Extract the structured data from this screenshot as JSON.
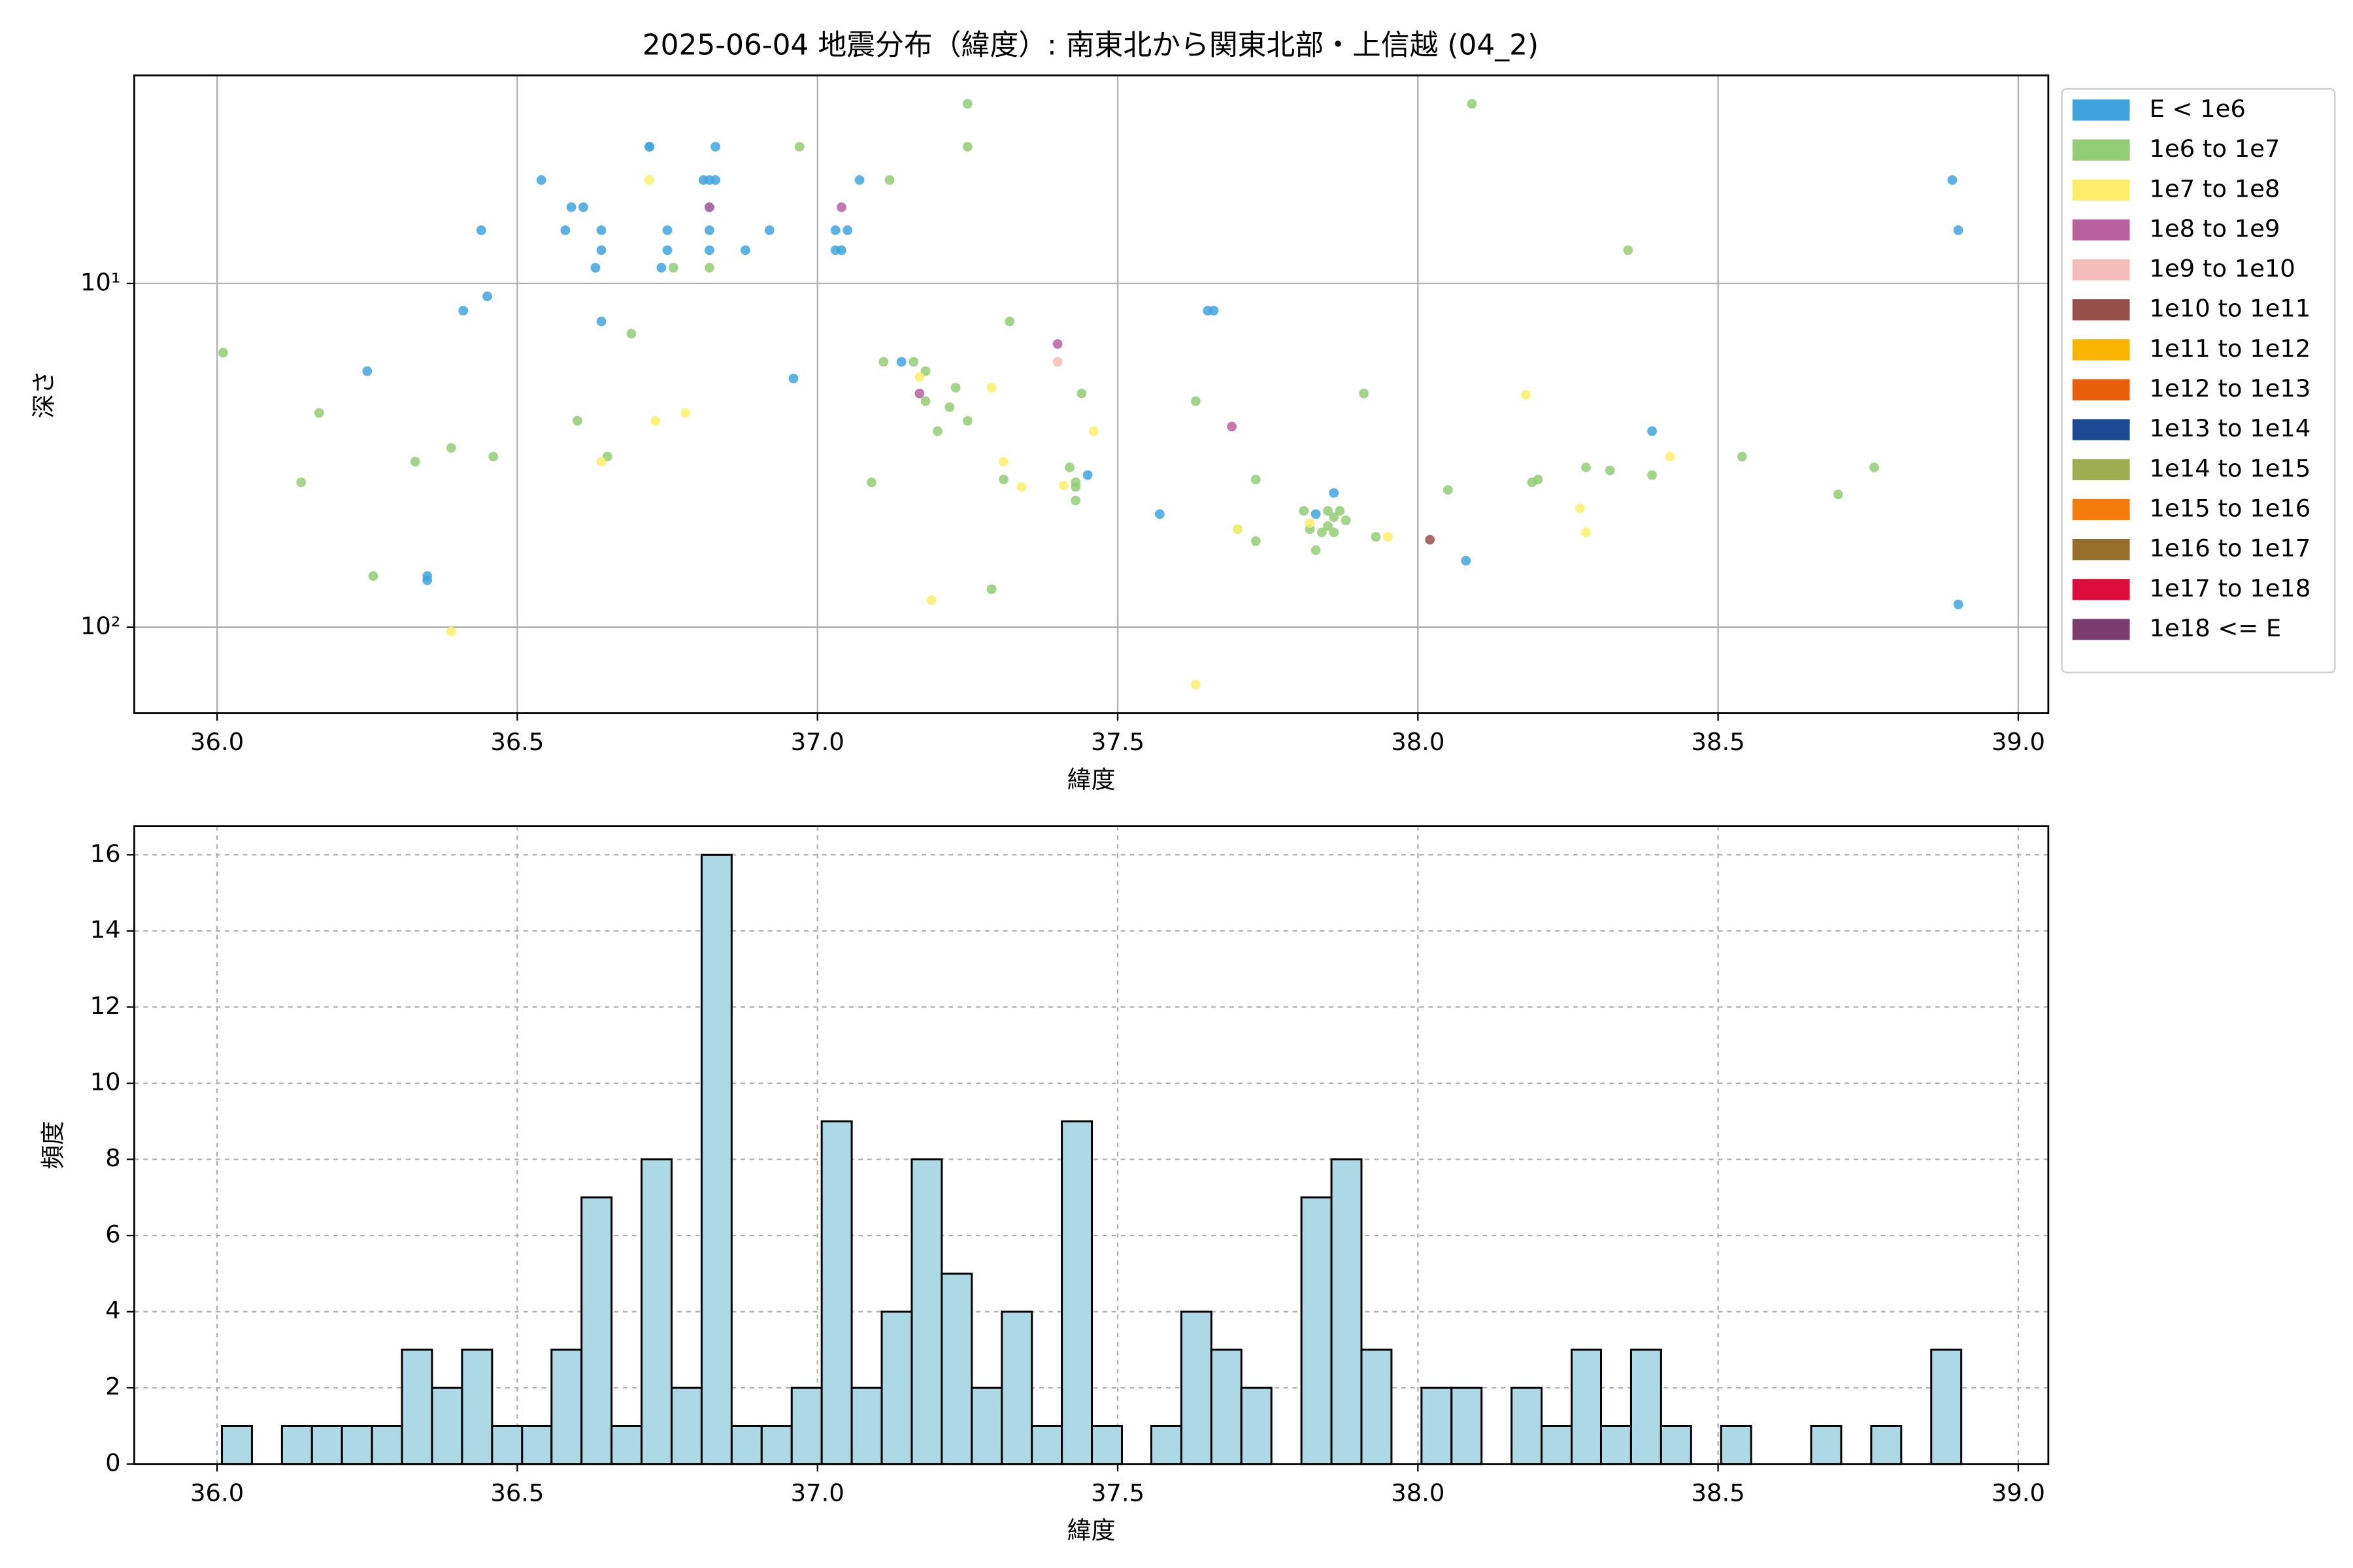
{
  "chart_data": [
    {
      "type": "scatter",
      "title": "2025-06-04 地震分布（緯度）: 南東北から関東北部・上信越 (04_2)",
      "x_label": "緯度",
      "y_label": "深さ",
      "xlim": [
        35.862,
        39.05
      ],
      "xticks": [
        {
          "value": 36,
          "label": "36.0"
        },
        {
          "value": 36.5,
          "label": "36.5"
        },
        {
          "value": 37,
          "label": "37.0"
        },
        {
          "value": 37.5,
          "label": "37.5"
        },
        {
          "value": 38,
          "label": "38.0"
        },
        {
          "value": 38.5,
          "label": "38.5"
        },
        {
          "value": 39,
          "label": "39.0"
        }
      ],
      "ylim": [
        2.48,
        178
      ],
      "y_log": true,
      "y_inverted": true,
      "yticks": [
        {
          "value": 10,
          "label": "10¹"
        },
        {
          "value": 100,
          "label": "10²"
        }
      ],
      "grid": true,
      "legend": "outside upper right",
      "series": [
        {
          "name": "E < 1e6",
          "color": "#3fa4dd",
          "x": [
            36.25,
            36.35,
            36.35,
            36.41,
            36.44,
            36.45,
            36.54,
            36.58,
            36.59,
            36.61,
            36.63,
            36.64,
            36.64,
            36.64,
            36.72,
            36.72,
            36.75,
            36.74,
            36.75,
            36.82,
            36.81,
            36.82,
            36.82,
            36.82,
            36.83,
            36.83,
            36.88,
            36.92,
            36.96,
            37.03,
            37.03,
            37.04,
            37.05,
            37.07,
            37.14,
            37.45,
            37.57,
            37.65,
            37.66,
            37.83,
            37.86,
            38.08,
            38.39,
            38.89,
            38.9,
            38.9
          ],
          "values": [
            18.0,
            71.0,
            73.1,
            12.0,
            7.0,
            10.9,
            5.0,
            7.0,
            6.0,
            6.0,
            9.0,
            7.0,
            8.0,
            12.9,
            4.0,
            4.0,
            7.0,
            9.0,
            8.0,
            5.0,
            5.0,
            6.0,
            7.0,
            8.0,
            4.0,
            5.0,
            8.0,
            7.0,
            18.9,
            7.0,
            8.0,
            8.0,
            7.0,
            5.0,
            16.9,
            36.1,
            46.9,
            12.0,
            12.0,
            46.9,
            40.7,
            64.1,
            26.9,
            5.0,
            7.0,
            85.9
          ]
        },
        {
          "name": "1e6 to 1e7",
          "color": "#92cc75",
          "x": [
            36.01,
            36.14,
            36.17,
            36.26,
            36.33,
            36.39,
            36.46,
            36.6,
            36.65,
            36.69,
            36.76,
            36.82,
            36.97,
            37.09,
            37.11,
            37.12,
            37.16,
            37.18,
            37.18,
            37.2,
            37.22,
            37.23,
            37.25,
            37.25,
            37.25,
            37.29,
            37.31,
            37.32,
            37.42,
            37.43,
            37.43,
            37.43,
            37.44,
            37.63,
            37.7,
            37.73,
            37.73,
            37.81,
            37.82,
            37.83,
            37.84,
            37.85,
            37.85,
            37.86,
            37.86,
            37.87,
            37.88,
            37.91,
            37.93,
            38.05,
            38.09,
            38.19,
            38.2,
            38.28,
            38.32,
            38.35,
            38.39,
            38.54,
            38.7,
            38.76
          ],
          "values": [
            15.9,
            37.9,
            23.8,
            71.0,
            33.0,
            30.1,
            31.9,
            25.1,
            31.9,
            14.0,
            9.0,
            9.0,
            4.0,
            37.9,
            16.9,
            5.0,
            16.9,
            18.0,
            22.0,
            26.9,
            22.9,
            20.1,
            3.0,
            25.1,
            4.0,
            77.6,
            37.2,
            12.9,
            34.3,
            37.9,
            39.1,
            42.8,
            20.9,
            22.0,
            51.9,
            37.2,
            56.2,
            45.9,
            51.9,
            59.7,
            53.0,
            45.9,
            50.8,
            53.0,
            47.9,
            45.9,
            48.9,
            20.9,
            54.6,
            39.9,
            3.0,
            37.9,
            37.2,
            34.3,
            35.0,
            8.0,
            36.1,
            31.9,
            41.1,
            34.3
          ]
        },
        {
          "name": "1e7 to 1e8",
          "color": "#fdee6a",
          "x": [
            36.39,
            36.64,
            36.72,
            36.73,
            36.78,
            37.17,
            37.19,
            37.29,
            37.31,
            37.34,
            37.41,
            37.46,
            37.63,
            37.7,
            37.82,
            37.95,
            38.18,
            38.27,
            38.28,
            38.42
          ],
          "values": [
            103,
            33.0,
            5.0,
            25.1,
            23.8,
            18.7,
            83.4,
            20.1,
            33.0,
            39.1,
            38.7,
            26.9,
            147,
            51.9,
            49.8,
            54.6,
            21.1,
            45.1,
            53.0,
            31.9
          ]
        },
        {
          "name": "1e8 to 1e9",
          "color": "#b9619f",
          "x": [
            36.82,
            37.04,
            37.17,
            37.4,
            37.69
          ],
          "values": [
            6.0,
            6.0,
            20.9,
            15.0,
            26.1
          ]
        },
        {
          "name": "1e9 to 1e10",
          "color": "#f5bdb7",
          "x": [
            37.4
          ],
          "values": [
            16.9
          ]
        },
        {
          "name": "1e10 to 1e11",
          "color": "#955149",
          "x": [
            38.02
          ],
          "values": [
            55.7
          ]
        },
        {
          "name": "1e11 to 1e12",
          "color": "#f9b400",
          "x": [],
          "values": []
        },
        {
          "name": "1e12 to 1e13",
          "color": "#e8600c",
          "x": [],
          "values": []
        },
        {
          "name": "1e13 to 1e14",
          "color": "#1a4a92",
          "x": [],
          "values": []
        },
        {
          "name": "1e14 to 1e15",
          "color": "#9ead4f",
          "x": [],
          "values": []
        },
        {
          "name": "1e15 to 1e16",
          "color": "#f57c0c",
          "x": [],
          "values": []
        },
        {
          "name": "1e16 to 1e17",
          "color": "#966d2a",
          "x": [],
          "values": []
        },
        {
          "name": "1e17 to 1e18",
          "color": "#dc0d3a",
          "x": [],
          "values": []
        },
        {
          "name": "1e18 <= E",
          "color": "#7a3b6e",
          "x": [],
          "values": []
        }
      ]
    },
    {
      "type": "histogram",
      "x_label": "緯度",
      "y_label": "頻度",
      "xlim": [
        35.862,
        39.05
      ],
      "xticks": [
        {
          "value": 36,
          "label": "36.0"
        },
        {
          "value": 36.5,
          "label": "36.5"
        },
        {
          "value": 37,
          "label": "37.0"
        },
        {
          "value": 37.5,
          "label": "37.5"
        },
        {
          "value": 38,
          "label": "38.0"
        },
        {
          "value": 38.5,
          "label": "38.5"
        },
        {
          "value": 39,
          "label": "39.0"
        }
      ],
      "ylim": [
        0,
        16.75
      ],
      "yticks": [
        0,
        2,
        4,
        6,
        8,
        10,
        12,
        14,
        16
      ],
      "grid": true,
      "color": "#add8e6",
      "edgecolor": "#000000",
      "bins": [
        36.008,
        36.058,
        36.108,
        36.158,
        36.208,
        36.258,
        36.308,
        36.358,
        36.408,
        36.458,
        36.508,
        36.557,
        36.607,
        36.657,
        36.707,
        36.757,
        36.807,
        36.857,
        36.907,
        36.957,
        37.007,
        37.057,
        37.107,
        37.157,
        37.207,
        37.257,
        37.307,
        37.357,
        37.407,
        37.457,
        37.507,
        37.556,
        37.606,
        37.656,
        37.706,
        37.756,
        37.806,
        37.856,
        37.906,
        37.956,
        38.006,
        38.056,
        38.106,
        38.156,
        38.206,
        38.256,
        38.305,
        38.355,
        38.405,
        38.455,
        38.505,
        38.555,
        38.605,
        38.655,
        38.705,
        38.755,
        38.805,
        38.855,
        38.905
      ],
      "values": [
        1,
        0,
        1,
        1,
        1,
        1,
        3,
        2,
        3,
        1,
        1,
        3,
        7,
        1,
        8,
        2,
        16,
        1,
        1,
        2,
        9,
        2,
        4,
        8,
        5,
        2,
        4,
        1,
        9,
        1,
        0,
        1,
        4,
        3,
        2,
        0,
        7,
        8,
        3,
        0,
        2,
        2,
        0,
        2,
        1,
        3,
        1,
        3,
        1,
        0,
        1,
        0,
        0,
        1,
        0,
        1,
        0,
        3
      ]
    }
  ]
}
